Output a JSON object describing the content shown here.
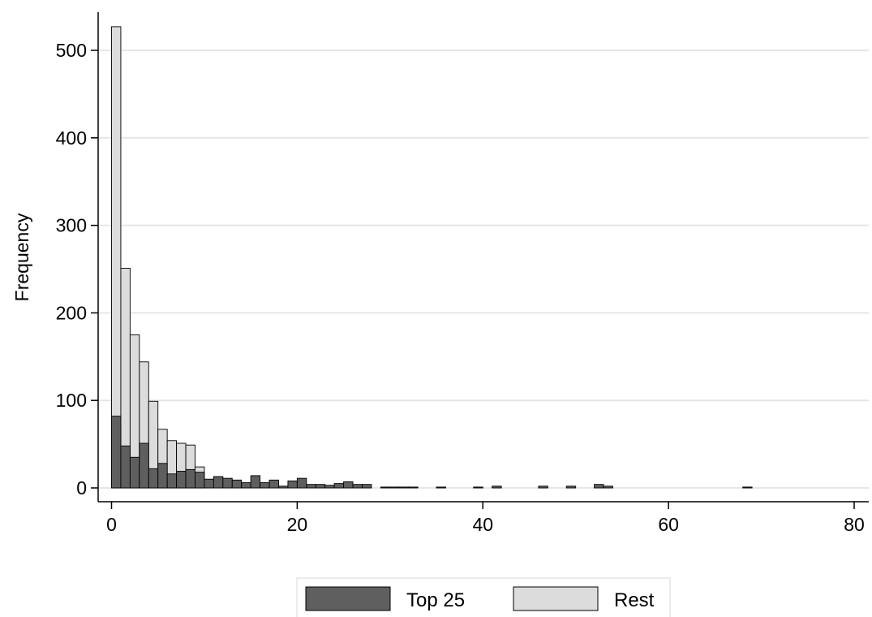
{
  "chart_data": {
    "type": "bar",
    "subtype": "overlaid-histogram",
    "title": "",
    "xlabel": "",
    "ylabel": "Frequency",
    "xlim": [
      0,
      80
    ],
    "ylim": [
      0,
      500
    ],
    "x_ticks": [
      0,
      20,
      40,
      60,
      80
    ],
    "y_ticks": [
      0,
      100,
      200,
      300,
      400,
      500
    ],
    "bin_width": 1,
    "grid": "horizontal",
    "legend_position": "bottom",
    "series": [
      {
        "name": "Rest",
        "color": "#dcdcdc",
        "bins": [
          [
            0,
            527
          ],
          [
            1,
            251
          ],
          [
            2,
            175
          ],
          [
            3,
            144
          ],
          [
            4,
            99
          ],
          [
            5,
            67
          ],
          [
            6,
            54
          ],
          [
            7,
            51
          ],
          [
            8,
            49
          ],
          [
            9,
            24
          ]
        ]
      },
      {
        "name": "Top 25",
        "color": "#5f5f5f",
        "bins": [
          [
            0,
            82
          ],
          [
            1,
            48
          ],
          [
            2,
            35
          ],
          [
            3,
            51
          ],
          [
            4,
            22
          ],
          [
            5,
            28
          ],
          [
            6,
            16
          ],
          [
            7,
            19
          ],
          [
            8,
            21
          ],
          [
            9,
            18
          ],
          [
            10,
            10
          ],
          [
            11,
            13
          ],
          [
            12,
            11
          ],
          [
            13,
            9
          ],
          [
            14,
            6
          ],
          [
            15,
            14
          ],
          [
            16,
            6
          ],
          [
            17,
            9
          ],
          [
            18,
            2
          ],
          [
            19,
            8
          ],
          [
            20,
            11
          ],
          [
            21,
            4
          ],
          [
            22,
            4
          ],
          [
            23,
            3
          ],
          [
            24,
            5
          ],
          [
            25,
            7
          ],
          [
            26,
            4
          ],
          [
            27,
            4
          ],
          [
            29,
            1
          ],
          [
            30,
            1
          ],
          [
            31,
            1
          ],
          [
            32,
            1
          ],
          [
            35,
            1
          ],
          [
            39,
            1
          ],
          [
            41,
            2
          ],
          [
            46,
            2
          ],
          [
            49,
            2
          ],
          [
            52,
            4
          ],
          [
            53,
            2
          ],
          [
            68,
            1
          ]
        ]
      }
    ]
  },
  "legend": {
    "items": [
      {
        "label": "Top 25",
        "color": "#5f5f5f"
      },
      {
        "label": "Rest",
        "color": "#dcdcdc"
      }
    ]
  }
}
